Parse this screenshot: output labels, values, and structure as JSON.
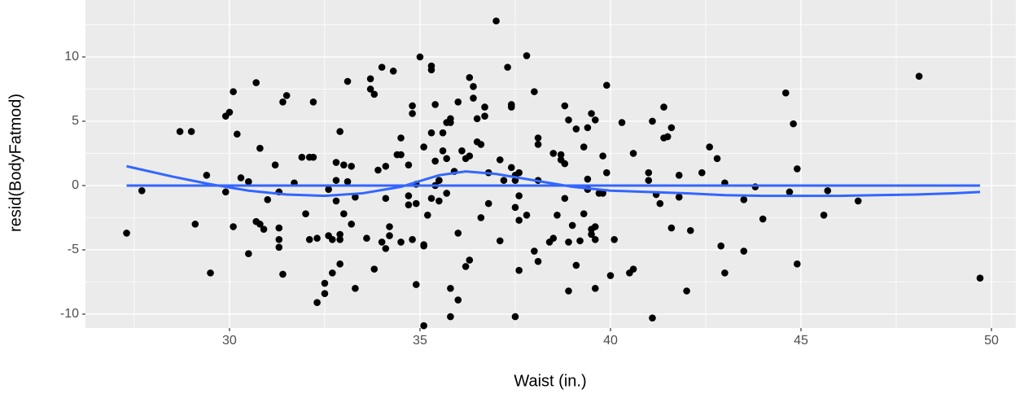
{
  "chart_data": {
    "type": "scatter",
    "x_label": "Waist (in.)",
    "y_label": "resid(BodyFatmod)",
    "xlim": [
      26.22,
      50.64
    ],
    "ylim": [
      -11.08,
      14.43
    ],
    "xticks": [
      30,
      35,
      40,
      45,
      50
    ],
    "yticks": [
      -10,
      -5,
      0,
      5,
      10
    ],
    "xticks_minor": [
      27.5,
      32.5,
      37.5,
      42.5,
      47.5
    ],
    "yticks_minor": [
      -7.5,
      -2.5,
      2.5,
      7.5,
      12.5
    ],
    "grid": true,
    "panel_color": "#EBEBEB",
    "points": {
      "color": "#000000",
      "x": [
        27.3,
        27.7,
        28.7,
        29.0,
        29.1,
        29.4,
        29.5,
        29.9,
        29.9,
        30.0,
        30.1,
        30.1,
        30.2,
        30.3,
        30.5,
        30.5,
        30.7,
        30.7,
        30.8,
        30.8,
        30.9,
        31.0,
        31.2,
        31.3,
        31.3,
        31.3,
        31.3,
        31.4,
        31.4,
        31.5,
        31.7,
        31.9,
        32.0,
        32.1,
        32.1,
        32.2,
        32.2,
        32.3,
        32.3,
        32.5,
        32.5,
        32.6,
        32.6,
        32.7,
        32.7,
        32.8,
        32.8,
        32.8,
        32.9,
        32.9,
        32.9,
        32.9,
        33.0,
        33.0,
        33.1,
        33.1,
        33.2,
        33.2,
        33.3,
        33.3,
        33.6,
        33.7,
        33.7,
        33.8,
        33.8,
        33.9,
        34.0,
        34.0,
        34.1,
        34.1,
        34.1,
        34.2,
        34.2,
        34.3,
        34.4,
        34.5,
        34.5,
        34.5,
        34.7,
        34.7,
        34.7,
        34.8,
        34.8,
        34.8,
        34.9,
        34.9,
        34.9,
        35.0,
        35.1,
        35.1,
        35.1,
        35.1,
        35.2,
        35.3,
        35.3,
        35.3,
        35.3,
        35.4,
        35.4,
        35.4,
        35.5,
        35.5,
        35.5,
        35.6,
        35.6,
        35.7,
        35.7,
        35.7,
        35.8,
        35.8,
        35.8,
        35.8,
        35.9,
        36.0,
        36.0,
        36.0,
        36.1,
        36.2,
        36.2,
        36.3,
        36.3,
        36.3,
        36.4,
        36.4,
        36.5,
        36.5,
        36.6,
        36.6,
        36.7,
        36.7,
        36.8,
        36.8,
        37.0,
        37.1,
        37.1,
        37.2,
        37.3,
        37.4,
        37.4,
        37.4,
        37.5,
        37.5,
        37.5,
        37.5,
        37.6,
        37.6,
        37.6,
        37.6,
        37.8,
        37.8,
        38.0,
        38.0,
        38.1,
        38.1,
        38.1,
        38.1,
        38.4,
        38.5,
        38.5,
        38.6,
        38.7,
        38.7,
        38.8,
        38.8,
        38.8,
        38.9,
        38.9,
        38.9,
        39.0,
        39.1,
        39.1,
        39.2,
        39.3,
        39.3,
        39.4,
        39.4,
        39.4,
        39.5,
        39.5,
        39.5,
        39.6,
        39.6,
        39.6,
        39.6,
        39.7,
        39.8,
        39.8,
        39.9,
        39.9,
        40.0,
        40.1,
        40.3,
        40.5,
        40.6,
        40.6,
        41.0,
        41.0,
        41.1,
        41.1,
        41.2,
        41.3,
        41.4,
        41.4,
        41.5,
        41.6,
        41.6,
        41.8,
        41.8,
        42.0,
        42.1,
        42.4,
        42.6,
        42.8,
        42.9,
        43.0,
        43.0,
        43.5,
        43.5,
        43.8,
        44.0,
        44.6,
        44.7,
        44.8,
        44.9,
        44.9,
        45.6,
        45.7,
        46.5,
        48.1,
        49.7
      ],
      "y": [
        -3.7,
        -0.4,
        4.2,
        4.2,
        -3.0,
        0.8,
        -6.8,
        -0.5,
        5.4,
        5.7,
        7.3,
        -3.2,
        4.0,
        0.6,
        0.3,
        -5.3,
        -2.8,
        8.0,
        2.9,
        -3.0,
        -3.4,
        -1.1,
        1.6,
        -0.5,
        -3.3,
        -4.8,
        -4.2,
        -6.9,
        6.5,
        7.0,
        0.2,
        2.2,
        -2.2,
        -4.2,
        2.2,
        2.2,
        6.5,
        -9.1,
        -4.1,
        -8.4,
        -7.6,
        -0.3,
        -3.9,
        -6.8,
        -4.2,
        -1.2,
        0.4,
        1.8,
        4.2,
        -4.2,
        -6.1,
        -3.8,
        1.6,
        -2.2,
        8.1,
        0.3,
        1.5,
        -3.0,
        -8.0,
        -0.9,
        -4.1,
        8.3,
        7.5,
        7.1,
        -6.5,
        1.2,
        9.2,
        -4.4,
        -4.9,
        -1.0,
        1.5,
        -3.2,
        -3.9,
        8.9,
        2.4,
        2.4,
        3.7,
        -4.4,
        -0.8,
        -1.5,
        1.6,
        5.6,
        -4.2,
        6.2,
        0.1,
        -1.4,
        -7.7,
        10.0,
        -4.6,
        -10.9,
        -4.7,
        3.0,
        -2.3,
        9.0,
        -1.0,
        4.1,
        9.3,
        6.3,
        0.0,
        1.9,
        0.4,
        -1.2,
        0.4,
        4.1,
        2.7,
        2.1,
        4.9,
        -0.6,
        4.9,
        -8.0,
        -10.2,
        5.2,
        1.1,
        -3.7,
        6.5,
        -8.9,
        2.7,
        -6.3,
        2.1,
        -5.8,
        8.4,
        2.3,
        7.7,
        6.8,
        5.2,
        3.4,
        3.2,
        -2.5,
        5.4,
        6.1,
        -1.4,
        1.0,
        12.8,
        2.0,
        -4.3,
        0.4,
        9.2,
        6.1,
        6.3,
        1.4,
        0.4,
        -1.7,
        0.8,
        -10.2,
        1.0,
        -0.8,
        -6.6,
        -2.7,
        10.1,
        -2.3,
        -5.1,
        7.3,
        3.7,
        -5.9,
        3.2,
        0.4,
        -4.4,
        2.5,
        -4.1,
        -2.3,
        2.0,
        2.4,
        -1.0,
        1.7,
        6.2,
        -4.4,
        -8.2,
        5.1,
        -3.1,
        4.4,
        -6.2,
        -4.3,
        3.0,
        -2.2,
        0.5,
        4.5,
        -0.3,
        -3.4,
        -3.8,
        5.6,
        -4.2,
        -8.0,
        5.1,
        -3.2,
        -0.6,
        2.3,
        -0.6,
        1.0,
        7.8,
        -7.0,
        -4.2,
        4.9,
        -6.8,
        -6.5,
        2.5,
        0.4,
        1.0,
        -10.3,
        5.0,
        -0.7,
        -1.4,
        6.1,
        3.7,
        3.8,
        4.5,
        -3.3,
        -0.9,
        0.8,
        -8.2,
        -3.5,
        1.0,
        3.0,
        2.1,
        -4.7,
        0.2,
        -6.8,
        -1.1,
        -5.1,
        -0.1,
        -2.6,
        7.2,
        -0.5,
        4.8,
        -6.1,
        1.3,
        -2.3,
        -0.4,
        -1.2,
        8.5,
        -7.2
      ]
    },
    "lines": [
      {
        "color": "#3366FF",
        "x": [
          27.3,
          49.7
        ],
        "y": [
          0,
          0
        ]
      },
      {
        "color": "#3366FF",
        "x": [
          27.3,
          28.5,
          29.5,
          30.5,
          31.5,
          32.5,
          33.5,
          34.5,
          35.5,
          36.2,
          37,
          38,
          39,
          40,
          41,
          42,
          43,
          44,
          45,
          46,
          47,
          48,
          49,
          49.7
        ],
        "y": [
          1.5,
          0.7,
          0.1,
          -0.4,
          -0.7,
          -0.8,
          -0.6,
          -0.1,
          0.8,
          1.1,
          0.9,
          0.4,
          -0.1,
          -0.4,
          -0.5,
          -0.6,
          -0.75,
          -0.8,
          -0.8,
          -0.8,
          -0.75,
          -0.7,
          -0.6,
          -0.5
        ]
      }
    ]
  }
}
